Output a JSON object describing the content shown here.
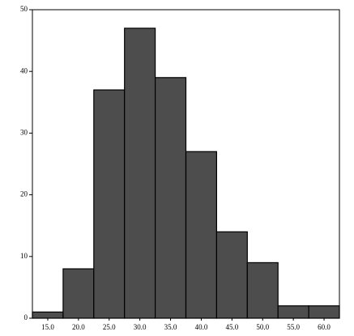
{
  "chart_data": {
    "type": "histogram",
    "bins": [
      12.5,
      17.5,
      22.5,
      27.5,
      32.5,
      37.5,
      42.5,
      47.5,
      52.5,
      57.5,
      62.5
    ],
    "values": [
      1,
      8,
      37,
      47,
      39,
      27,
      14,
      9,
      2,
      2
    ],
    "color": "#4d4d4d",
    "xlim": [
      12.5,
      62.5
    ],
    "xticks": [
      {
        "value": 15,
        "label": "15.0"
      },
      {
        "value": 20,
        "label": "20.0"
      },
      {
        "value": 25,
        "label": "25.0"
      },
      {
        "value": 30,
        "label": "30.0"
      },
      {
        "value": 35,
        "label": "35.0"
      },
      {
        "value": 40,
        "label": "40.0"
      },
      {
        "value": 45,
        "label": "45.0"
      },
      {
        "value": 50,
        "label": "50.0"
      },
      {
        "value": 55,
        "label": "55.0"
      },
      {
        "value": 60,
        "label": "60.0"
      }
    ],
    "ylim": [
      0,
      50
    ],
    "yticks": [
      0,
      10,
      20,
      30,
      40,
      50
    ]
  }
}
